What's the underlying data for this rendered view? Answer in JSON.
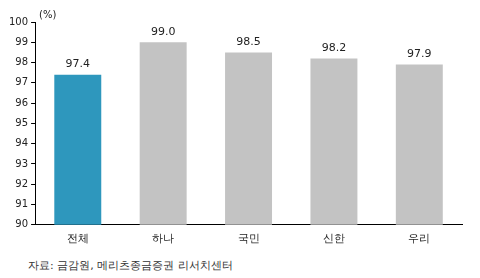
{
  "chart_data": {
    "type": "bar",
    "ylabel": "(%)",
    "source": "자료: 금감원, 메리츠종금증권 리서치센터",
    "categories": [
      "전체",
      "하나",
      "국민",
      "신한",
      "우리"
    ],
    "values": [
      97.4,
      99.0,
      98.5,
      98.2,
      97.9
    ],
    "value_labels": [
      "97.4",
      "99.0",
      "98.5",
      "98.2",
      "97.9"
    ],
    "colors": [
      "#2e97bd",
      "#c3c3c3",
      "#c3c3c3",
      "#c3c3c3",
      "#c3c3c3"
    ],
    "ylim": [
      90,
      100
    ],
    "yticks": [
      90,
      91,
      92,
      93,
      94,
      95,
      96,
      97,
      98,
      99,
      100
    ],
    "grid": false,
    "data_labels": true
  }
}
